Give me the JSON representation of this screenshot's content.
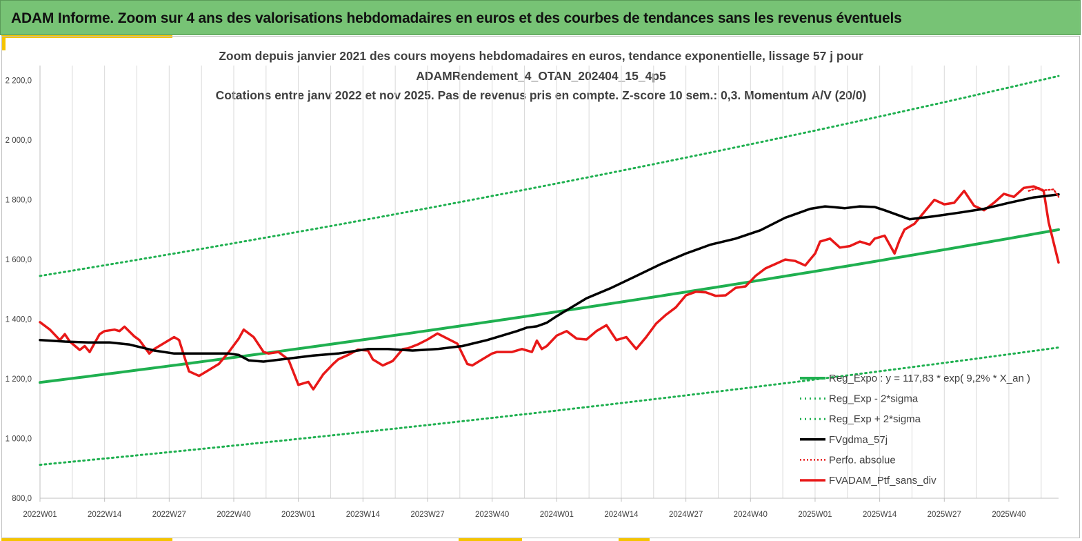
{
  "header": {
    "banner_title": "ADAM Informe. Zoom sur 4 ans des valorisations hebdomadaires en euros et des courbes de tendances sans les revenus éventuels"
  },
  "colors": {
    "banner": "#77c375",
    "accent": "#f5c400",
    "reg_expo": "#1fb050",
    "sigma": "#1fb050",
    "gdma": "#000000",
    "perf": "#e81818",
    "ptf": "#e81818",
    "grid": "#d9d9d9"
  },
  "chart_data": {
    "type": "line",
    "title_lines": [
      "Zoom depuis janvier 2021 des cours moyens hebdomadaires  en euros, tendance exponentielle, lissage 57 j pour",
      "ADAMRendement_4_OTAN_202404_15_4p5",
      "Cotations  entre janv 2022 et nov 2025. Pas de revenus pris en compte. Z-score 10 sem.: 0,3. Momentum A/V (20/0)"
    ],
    "xlabel": "",
    "ylabel": "",
    "x_tick_labels": [
      "2022W01",
      "2022W14",
      "2022W27",
      "2022W40",
      "2023W01",
      "2023W14",
      "2023W27",
      "2023W40",
      "2024W01",
      "2024W14",
      "2024W27",
      "2024W40",
      "2025W01",
      "2025W14",
      "2025W27",
      "2025W40"
    ],
    "x_range_weeks": [
      0,
      205
    ],
    "ylim": [
      800,
      2250
    ],
    "y_ticks": [
      800,
      1000,
      1200,
      1400,
      1600,
      1800,
      2000,
      2200
    ],
    "y_tick_labels": [
      "800,0",
      "1 000,0",
      "1 200,0",
      "1 400,0",
      "1 600,0",
      "1 800,0",
      "2 000,0",
      "2 200,0"
    ],
    "grid": "vertical",
    "legend_position": "bottom-right",
    "series": [
      {
        "name": "Reg_Expo : y = 117,83 * exp( 9,2% *  X_an )",
        "style": "solid-thick",
        "x": [
          0,
          205
        ],
        "y": [
          1188,
          1700
        ],
        "curve": "exponential"
      },
      {
        "name": "Reg_Exp - 2*sigma",
        "style": "dotted",
        "x": [
          0,
          205
        ],
        "y": [
          912,
          1305
        ],
        "curve": "exponential"
      },
      {
        "name": "Reg_Exp + 2*sigma",
        "style": "dotted",
        "x": [
          0,
          205
        ],
        "y": [
          1545,
          2215
        ],
        "curve": "exponential"
      },
      {
        "name": "FVgdma_57j",
        "style": "solid-thick",
        "x": [
          0,
          5,
          10,
          14,
          18,
          23,
          27,
          31,
          35,
          38,
          40,
          42,
          45,
          50,
          55,
          60,
          66,
          70,
          75,
          80,
          85,
          90,
          93,
          96,
          98,
          100,
          102,
          104,
          107,
          110,
          115,
          120,
          125,
          130,
          135,
          140,
          145,
          150,
          155,
          158,
          160,
          162,
          165,
          168,
          170,
          175,
          180,
          185,
          190,
          195,
          200,
          205
        ],
        "y": [
          1330,
          1325,
          1322,
          1322,
          1315,
          1295,
          1285,
          1285,
          1285,
          1285,
          1280,
          1262,
          1258,
          1268,
          1278,
          1285,
          1300,
          1300,
          1295,
          1300,
          1310,
          1330,
          1345,
          1360,
          1372,
          1376,
          1388,
          1410,
          1440,
          1470,
          1505,
          1545,
          1585,
          1620,
          1650,
          1670,
          1698,
          1740,
          1770,
          1778,
          1775,
          1772,
          1778,
          1776,
          1765,
          1735,
          1745,
          1757,
          1770,
          1790,
          1808,
          1818
        ]
      },
      {
        "name": "Perfo. absolue",
        "style": "dotted",
        "x": [
          199,
          201,
          202,
          204,
          205
        ],
        "y": [
          1830,
          1840,
          1832,
          1835,
          1810
        ]
      },
      {
        "name": "FVADAM_Ptf_sans_div",
        "style": "solid-thick",
        "x": [
          0,
          2,
          4,
          5,
          6,
          8,
          9,
          10,
          12,
          13,
          15,
          16,
          17,
          19,
          20,
          22,
          23,
          25,
          27,
          28,
          30,
          32,
          34,
          36,
          38,
          40,
          41,
          43,
          45,
          46,
          48,
          50,
          52,
          54,
          55,
          57,
          59,
          60,
          62,
          64,
          66,
          67,
          69,
          71,
          73,
          74,
          76,
          78,
          80,
          82,
          84,
          86,
          87,
          89,
          91,
          92,
          95,
          97,
          99,
          100,
          101,
          102,
          104,
          106,
          108,
          110,
          112,
          114,
          116,
          118,
          120,
          122,
          124,
          126,
          128,
          130,
          132,
          134,
          136,
          138,
          140,
          142,
          144,
          146,
          148,
          150,
          152,
          154,
          156,
          157,
          159,
          161,
          163,
          165,
          167,
          168,
          170,
          172,
          173,
          174,
          176,
          178,
          180,
          182,
          184,
          186,
          188,
          190,
          192,
          194,
          196,
          198,
          200,
          202,
          203,
          205
        ],
        "y": [
          1390,
          1365,
          1330,
          1350,
          1325,
          1297,
          1310,
          1290,
          1350,
          1360,
          1365,
          1360,
          1375,
          1342,
          1330,
          1285,
          1300,
          1320,
          1340,
          1330,
          1225,
          1210,
          1230,
          1250,
          1290,
          1335,
          1365,
          1340,
          1290,
          1285,
          1290,
          1265,
          1180,
          1190,
          1165,
          1215,
          1250,
          1265,
          1280,
          1298,
          1295,
          1265,
          1245,
          1260,
          1300,
          1302,
          1315,
          1332,
          1352,
          1335,
          1318,
          1250,
          1245,
          1265,
          1285,
          1290,
          1290,
          1300,
          1290,
          1328,
          1300,
          1310,
          1345,
          1360,
          1335,
          1332,
          1360,
          1380,
          1330,
          1340,
          1300,
          1340,
          1385,
          1415,
          1440,
          1480,
          1492,
          1490,
          1478,
          1480,
          1505,
          1510,
          1545,
          1570,
          1585,
          1600,
          1595,
          1580,
          1620,
          1660,
          1670,
          1640,
          1645,
          1660,
          1650,
          1670,
          1680,
          1620,
          1665,
          1700,
          1720,
          1760,
          1800,
          1785,
          1790,
          1830,
          1780,
          1765,
          1790,
          1820,
          1810,
          1840,
          1845,
          1830,
          1725,
          1590
        ]
      }
    ]
  }
}
